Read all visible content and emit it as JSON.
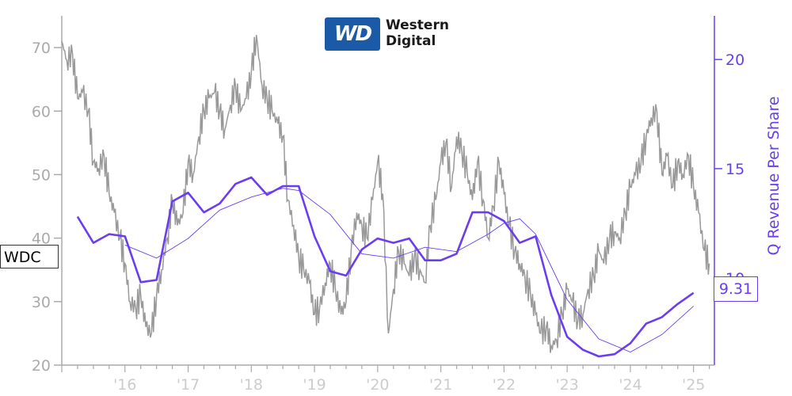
{
  "logo": {
    "mark": "WD",
    "line1": "Western",
    "line2": "Digital"
  },
  "ticker": "WDC",
  "last_value_label": "9.31",
  "colors": {
    "price": "#999999",
    "revenue": "#6a3df0",
    "axis": "#aaaaaa"
  },
  "chart_data": {
    "type": "line",
    "x_ticks": [
      "'16",
      "'17",
      "'18",
      "'19",
      "'20",
      "'21",
      "'22",
      "'23",
      "'24",
      "'25"
    ],
    "left_axis": {
      "label": "",
      "ticks": [
        20,
        30,
        40,
        50,
        60,
        70
      ],
      "range": [
        20,
        75
      ]
    },
    "right_axis": {
      "label": "Q Revenue Per Share",
      "ticks": [
        10,
        15,
        20
      ],
      "range": [
        6.0,
        22.0
      ]
    },
    "price_series": {
      "name": "WDC",
      "points": [
        [
          2015.0,
          71
        ],
        [
          2015.08,
          68
        ],
        [
          2015.17,
          69
        ],
        [
          2015.25,
          62
        ],
        [
          2015.33,
          63
        ],
        [
          2015.42,
          60
        ],
        [
          2015.5,
          52
        ],
        [
          2015.58,
          51
        ],
        [
          2015.67,
          53
        ],
        [
          2015.75,
          47
        ],
        [
          2015.83,
          44
        ],
        [
          2015.92,
          40
        ],
        [
          2016.0,
          36
        ],
        [
          2016.08,
          30
        ],
        [
          2016.17,
          29
        ],
        [
          2016.25,
          31
        ],
        [
          2016.33,
          26
        ],
        [
          2016.42,
          25
        ],
        [
          2016.5,
          31
        ],
        [
          2016.58,
          35
        ],
        [
          2016.67,
          40
        ],
        [
          2016.75,
          46
        ],
        [
          2016.83,
          42
        ],
        [
          2016.92,
          44
        ],
        [
          2017.0,
          52
        ],
        [
          2017.08,
          50
        ],
        [
          2017.17,
          56
        ],
        [
          2017.25,
          60
        ],
        [
          2017.33,
          62
        ],
        [
          2017.42,
          63
        ],
        [
          2017.5,
          60
        ],
        [
          2017.58,
          57
        ],
        [
          2017.67,
          61
        ],
        [
          2017.75,
          64
        ],
        [
          2017.83,
          60
        ],
        [
          2017.92,
          62
        ],
        [
          2018.0,
          66
        ],
        [
          2018.08,
          72
        ],
        [
          2018.17,
          64
        ],
        [
          2018.25,
          62
        ],
        [
          2018.33,
          60
        ],
        [
          2018.42,
          58
        ],
        [
          2018.5,
          56
        ],
        [
          2018.58,
          46
        ],
        [
          2018.67,
          42
        ],
        [
          2018.75,
          37
        ],
        [
          2018.83,
          35
        ],
        [
          2018.92,
          33
        ],
        [
          2019.0,
          28
        ],
        [
          2019.08,
          29
        ],
        [
          2019.17,
          33
        ],
        [
          2019.25,
          36
        ],
        [
          2019.33,
          32
        ],
        [
          2019.42,
          28
        ],
        [
          2019.5,
          30
        ],
        [
          2019.58,
          38
        ],
        [
          2019.67,
          44
        ],
        [
          2019.75,
          42
        ],
        [
          2019.83,
          40
        ],
        [
          2019.92,
          46
        ],
        [
          2020.0,
          52
        ],
        [
          2020.08,
          47
        ],
        [
          2020.17,
          25
        ],
        [
          2020.25,
          32
        ],
        [
          2020.33,
          38
        ],
        [
          2020.42,
          36
        ],
        [
          2020.5,
          34
        ],
        [
          2020.58,
          37
        ],
        [
          2020.67,
          35
        ],
        [
          2020.75,
          33
        ],
        [
          2020.83,
          42
        ],
        [
          2020.92,
          46
        ],
        [
          2021.0,
          52
        ],
        [
          2021.08,
          55
        ],
        [
          2021.17,
          48
        ],
        [
          2021.25,
          56
        ],
        [
          2021.33,
          54
        ],
        [
          2021.42,
          50
        ],
        [
          2021.5,
          46
        ],
        [
          2021.58,
          52
        ],
        [
          2021.67,
          46
        ],
        [
          2021.75,
          40
        ],
        [
          2021.83,
          45
        ],
        [
          2021.92,
          52
        ],
        [
          2022.0,
          47
        ],
        [
          2022.08,
          42
        ],
        [
          2022.17,
          38
        ],
        [
          2022.25,
          36
        ],
        [
          2022.33,
          34
        ],
        [
          2022.42,
          31
        ],
        [
          2022.5,
          28
        ],
        [
          2022.58,
          25
        ],
        [
          2022.67,
          26
        ],
        [
          2022.75,
          23
        ],
        [
          2022.83,
          24
        ],
        [
          2022.92,
          28
        ],
        [
          2023.0,
          32
        ],
        [
          2023.08,
          30
        ],
        [
          2023.17,
          27
        ],
        [
          2023.25,
          28
        ],
        [
          2023.33,
          32
        ],
        [
          2023.42,
          34
        ],
        [
          2023.5,
          38
        ],
        [
          2023.58,
          36
        ],
        [
          2023.67,
          40
        ],
        [
          2023.75,
          41
        ],
        [
          2023.83,
          40
        ],
        [
          2023.92,
          44
        ],
        [
          2024.0,
          48
        ],
        [
          2024.08,
          50
        ],
        [
          2024.17,
          52
        ],
        [
          2024.25,
          56
        ],
        [
          2024.33,
          59
        ],
        [
          2024.42,
          60
        ],
        [
          2024.5,
          50
        ],
        [
          2024.58,
          53
        ],
        [
          2024.67,
          48
        ],
        [
          2024.75,
          52
        ],
        [
          2024.83,
          50
        ],
        [
          2024.92,
          53
        ],
        [
          2025.0,
          48
        ],
        [
          2025.08,
          44
        ],
        [
          2025.17,
          38
        ],
        [
          2025.25,
          36
        ]
      ]
    },
    "revenue_series": {
      "name": "Q Revenue Per Share",
      "points": [
        [
          2015.25,
          12.8
        ],
        [
          2015.5,
          11.6
        ],
        [
          2015.75,
          12.0
        ],
        [
          2016.0,
          11.9
        ],
        [
          2016.25,
          9.8
        ],
        [
          2016.5,
          9.9
        ],
        [
          2016.75,
          13.5
        ],
        [
          2017.0,
          13.9
        ],
        [
          2017.25,
          13.0
        ],
        [
          2017.5,
          13.4
        ],
        [
          2017.75,
          14.3
        ],
        [
          2018.0,
          14.6
        ],
        [
          2018.25,
          13.8
        ],
        [
          2018.5,
          14.2
        ],
        [
          2018.75,
          14.2
        ],
        [
          2019.0,
          11.9
        ],
        [
          2019.25,
          10.3
        ],
        [
          2019.5,
          10.1
        ],
        [
          2019.75,
          11.3
        ],
        [
          2020.0,
          11.8
        ],
        [
          2020.25,
          11.6
        ],
        [
          2020.5,
          11.8
        ],
        [
          2020.75,
          10.8
        ],
        [
          2021.0,
          10.8
        ],
        [
          2021.25,
          11.1
        ],
        [
          2021.5,
          13.0
        ],
        [
          2021.75,
          13.0
        ],
        [
          2022.0,
          12.6
        ],
        [
          2022.25,
          11.6
        ],
        [
          2022.5,
          11.9
        ],
        [
          2022.75,
          9.2
        ],
        [
          2023.0,
          7.3
        ],
        [
          2023.25,
          6.7
        ],
        [
          2023.5,
          6.4
        ],
        [
          2023.75,
          6.5
        ],
        [
          2024.0,
          7.0
        ],
        [
          2024.25,
          7.9
        ],
        [
          2024.5,
          8.2
        ],
        [
          2024.75,
          8.8
        ],
        [
          2025.0,
          9.31
        ]
      ]
    },
    "revenue_average": {
      "points": [
        [
          2016.0,
          11.5
        ],
        [
          2016.5,
          10.9
        ],
        [
          2017.0,
          11.8
        ],
        [
          2017.5,
          13.1
        ],
        [
          2018.0,
          13.7
        ],
        [
          2018.5,
          14.1
        ],
        [
          2018.75,
          14.0
        ],
        [
          2019.25,
          12.9
        ],
        [
          2019.75,
          11.1
        ],
        [
          2020.25,
          10.9
        ],
        [
          2020.75,
          11.4
        ],
        [
          2021.25,
          11.2
        ],
        [
          2021.75,
          12.0
        ],
        [
          2022.0,
          12.5
        ],
        [
          2022.25,
          12.7
        ],
        [
          2022.5,
          12.0
        ],
        [
          2022.75,
          10.5
        ],
        [
          2023.0,
          9.0
        ],
        [
          2023.5,
          7.2
        ],
        [
          2024.0,
          6.6
        ],
        [
          2024.5,
          7.4
        ],
        [
          2025.0,
          8.7
        ]
      ]
    }
  }
}
